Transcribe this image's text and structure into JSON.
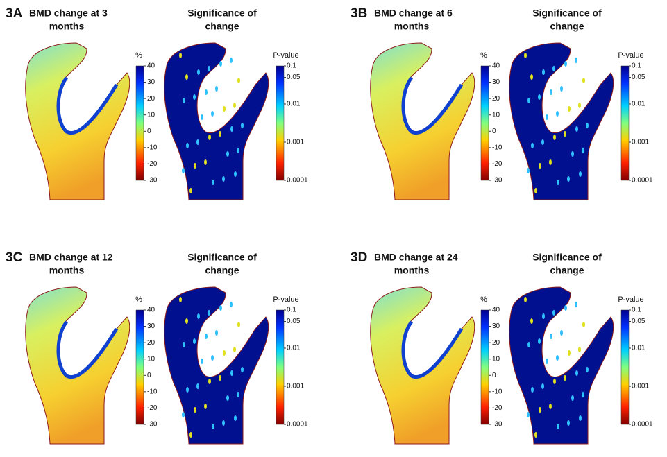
{
  "panels": [
    {
      "label": "3A",
      "title": [
        "BMD change at 3",
        "months"
      ],
      "significance_title": [
        "Significance of",
        "change"
      ]
    },
    {
      "label": "3B",
      "title": [
        "BMD change at 6",
        "months"
      ],
      "significance_title": [
        "Significance of",
        "change"
      ]
    },
    {
      "label": "3C",
      "title": [
        "BMD change at 12",
        "months"
      ],
      "significance_title": [
        "Significance of",
        "change"
      ]
    },
    {
      "label": "3D",
      "title": [
        "BMD change at 24",
        "months"
      ],
      "significance_title": [
        "Significance of",
        "change"
      ]
    }
  ],
  "bmd_colorbar": {
    "label": "%",
    "ticks": [
      40,
      30,
      20,
      10,
      0,
      -10,
      -20,
      -30
    ]
  },
  "p_colorbar": {
    "label": "P-value",
    "ticks": [
      0.1,
      0.05,
      0.01,
      0.001,
      0.0001
    ]
  }
}
